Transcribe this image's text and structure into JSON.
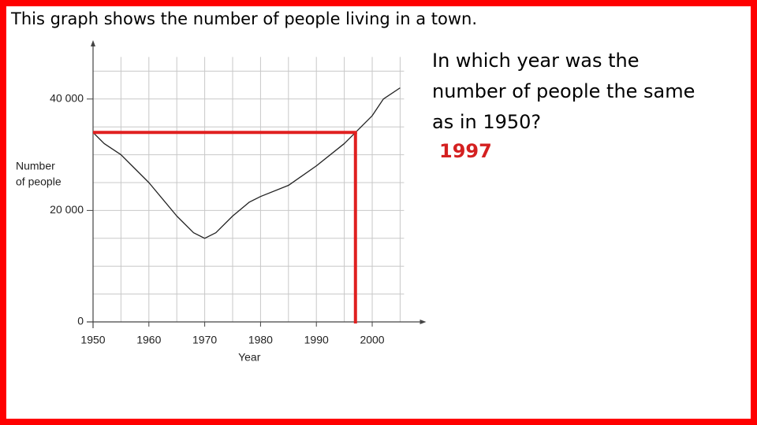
{
  "heading": "This graph shows the number of people living in a town.",
  "question": [
    "In which year was the",
    "number of people the same",
    "as in 1950?"
  ],
  "answer": "1997",
  "chart_data": {
    "type": "line",
    "xlabel": "Year",
    "ylabel": [
      "Number",
      "of people"
    ],
    "x": [
      1950,
      1952,
      1955,
      1957,
      1960,
      1965,
      1968,
      1970,
      1972,
      1975,
      1978,
      1980,
      1985,
      1990,
      1995,
      1997,
      2000,
      2002,
      2005
    ],
    "series": [
      {
        "color": "#222222",
        "values": [
          34000,
          32000,
          30000,
          28000,
          25000,
          19000,
          16000,
          15000,
          16000,
          19000,
          21500,
          22500,
          24500,
          28000,
          32000,
          34000,
          37000,
          40000,
          42000
        ]
      }
    ],
    "xlim": [
      1950,
      2006
    ],
    "ylim": [
      0,
      50000
    ],
    "xticks": [
      1950,
      1960,
      1970,
      1980,
      1990,
      2000
    ],
    "yticks": [
      0,
      {
        "value": 20000,
        "label": "20 000"
      },
      {
        "value": 40000,
        "label": "40 000"
      }
    ],
    "grid_x": [
      1950,
      1955,
      1960,
      1965,
      1970,
      1975,
      1980,
      1985,
      1990,
      1995,
      2000,
      2005
    ],
    "grid_y": [
      0,
      5000,
      10000,
      15000,
      20000,
      25000,
      30000,
      35000,
      40000,
      45000
    ],
    "grid": true,
    "guide": {
      "x": 1997,
      "y": 34000,
      "color": "#e02020"
    }
  }
}
